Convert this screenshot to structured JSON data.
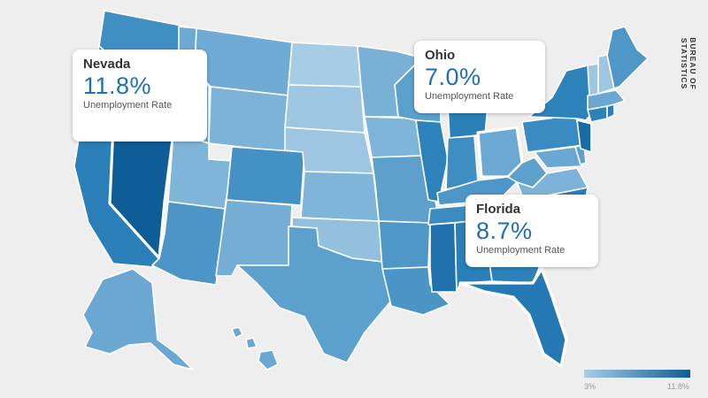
{
  "title": "",
  "source": "BUREAU OF STATISTICS",
  "legend": {
    "min_label": "3%",
    "max_label": "11.8%",
    "min": 3,
    "max": 11.8,
    "low_color": "#a7cce6",
    "high_color": "#0e5d96"
  },
  "callouts": [
    {
      "state": "Nevada",
      "rate": "11.8%",
      "label": "Unemployment Rate"
    },
    {
      "state": "Ohio",
      "rate": "7.0%",
      "label": "Unemployment Rate"
    },
    {
      "state": "Florida",
      "rate": "8.7%",
      "label": "Unemployment Rate"
    }
  ],
  "colors": {
    "background": "#eeeeee",
    "border": "#ffffff",
    "accent": "#1f6fb2"
  }
}
